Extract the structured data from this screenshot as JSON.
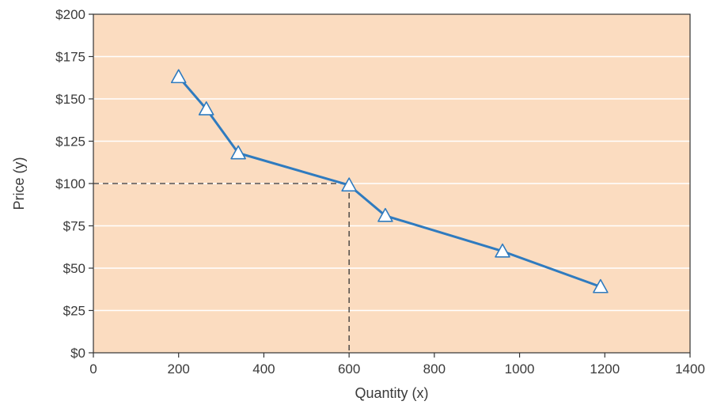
{
  "chart_data": {
    "type": "line",
    "title": "",
    "xlabel": "Quantity (x)",
    "ylabel": "Price (y)",
    "xlim": [
      0,
      1400
    ],
    "ylim": [
      0,
      200
    ],
    "x_ticks": [
      0,
      200,
      400,
      600,
      800,
      1000,
      1200,
      1400
    ],
    "x_tick_labels": [
      "0",
      "200",
      "400",
      "600",
      "800",
      "1000",
      "1200",
      "1400"
    ],
    "y_ticks": [
      0,
      25,
      50,
      75,
      100,
      125,
      150,
      175,
      200
    ],
    "y_tick_labels": [
      "$0",
      "$25",
      "$50",
      "$75",
      "$100",
      "$125",
      "$150",
      "$175",
      "$200"
    ],
    "grid": "horizontal",
    "series": [
      {
        "x": [
          200,
          265,
          340,
          600,
          685,
          960,
          1190
        ],
        "y": [
          163,
          144,
          118,
          99,
          81,
          60,
          39
        ],
        "marker": "triangle"
      }
    ],
    "reference_lines": {
      "x": 600,
      "y": 100,
      "style": "dashed"
    },
    "colors": {
      "plot_bg": "#fbdcc0",
      "line": "#2f7bbf",
      "grid": "#ffffff",
      "marker_fill": "#ffffff",
      "dashed": "#333333"
    }
  }
}
